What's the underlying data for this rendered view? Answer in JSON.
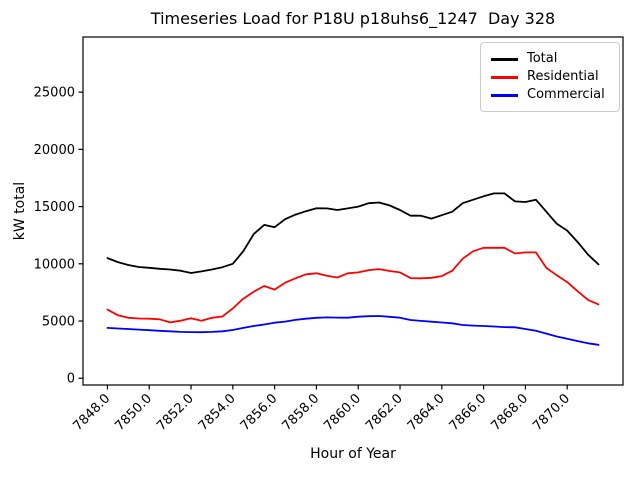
{
  "chart_data": {
    "type": "line",
    "title": "Timeseries Load for P18U p18uhs6_1247  Day 328",
    "xlabel": "Hour of Year",
    "ylabel": "kW total",
    "grid": false,
    "legend_position": "upper right",
    "xlim": [
      7846.83,
      7872.67
    ],
    "ylim": [
      -590,
      29820
    ],
    "x_ticks": [
      7848,
      7850,
      7852,
      7854,
      7856,
      7858,
      7860,
      7862,
      7864,
      7866,
      7868,
      7870
    ],
    "x_tick_labels": [
      "7848.0",
      "7850.0",
      "7852.0",
      "7854.0",
      "7856.0",
      "7858.0",
      "7860.0",
      "7862.0",
      "7864.0",
      "7866.0",
      "7868.0",
      "7870.0"
    ],
    "y_ticks": [
      0,
      5000,
      10000,
      15000,
      20000,
      25000
    ],
    "y_tick_labels": [
      "0",
      "5000",
      "10000",
      "15000",
      "20000",
      "25000"
    ],
    "x": [
      7848.0,
      7848.5,
      7849.0,
      7849.5,
      7850.0,
      7850.5,
      7851.0,
      7851.5,
      7852.0,
      7852.5,
      7853.0,
      7853.5,
      7854.0,
      7854.5,
      7855.0,
      7855.5,
      7856.0,
      7856.5,
      7857.0,
      7857.5,
      7858.0,
      7858.5,
      7859.0,
      7859.5,
      7860.0,
      7860.5,
      7861.0,
      7861.5,
      7862.0,
      7862.5,
      7863.0,
      7863.5,
      7864.0,
      7864.5,
      7865.0,
      7865.5,
      7866.0,
      7866.5,
      7867.0,
      7867.5,
      7868.0,
      7868.5,
      7869.0,
      7869.5,
      7870.0,
      7870.5,
      7871.0,
      7871.5
    ],
    "series": [
      {
        "name": "Total",
        "color": "#000000",
        "values": [
          10500,
          10150,
          9900,
          9720,
          9650,
          9560,
          9500,
          9400,
          9200,
          9340,
          9500,
          9700,
          10000,
          11100,
          12600,
          13400,
          13200,
          13900,
          14300,
          14600,
          14850,
          14840,
          14700,
          14840,
          15000,
          15300,
          15360,
          15100,
          14700,
          14200,
          14200,
          13950,
          14250,
          14550,
          15300,
          15600,
          15900,
          16150,
          16150,
          15450,
          15400,
          15600,
          14550,
          13500,
          12900,
          11900,
          10800,
          9950
        ]
      },
      {
        "name": "Residential",
        "color": "#ff0000",
        "values": [
          6000,
          5500,
          5280,
          5220,
          5200,
          5150,
          4880,
          5030,
          5240,
          5030,
          5280,
          5400,
          6100,
          6950,
          7560,
          8060,
          7750,
          8350,
          8730,
          9080,
          9170,
          8960,
          8800,
          9170,
          9250,
          9450,
          9540,
          9370,
          9250,
          8750,
          8730,
          8780,
          8930,
          9400,
          10450,
          11100,
          11400,
          11400,
          11400,
          10900,
          11000,
          11000,
          9650,
          9000,
          8400,
          7600,
          6850,
          6450
        ]
      },
      {
        "name": "Commercial",
        "color": "#0000ff",
        "values": [
          4400,
          4350,
          4300,
          4250,
          4200,
          4150,
          4100,
          4050,
          4030,
          4020,
          4050,
          4100,
          4220,
          4400,
          4570,
          4700,
          4850,
          4950,
          5100,
          5200,
          5280,
          5320,
          5300,
          5290,
          5380,
          5420,
          5440,
          5370,
          5290,
          5090,
          5010,
          4940,
          4870,
          4800,
          4650,
          4600,
          4570,
          4520,
          4470,
          4450,
          4300,
          4150,
          3900,
          3650,
          3450,
          3250,
          3050,
          2920
        ]
      }
    ]
  }
}
